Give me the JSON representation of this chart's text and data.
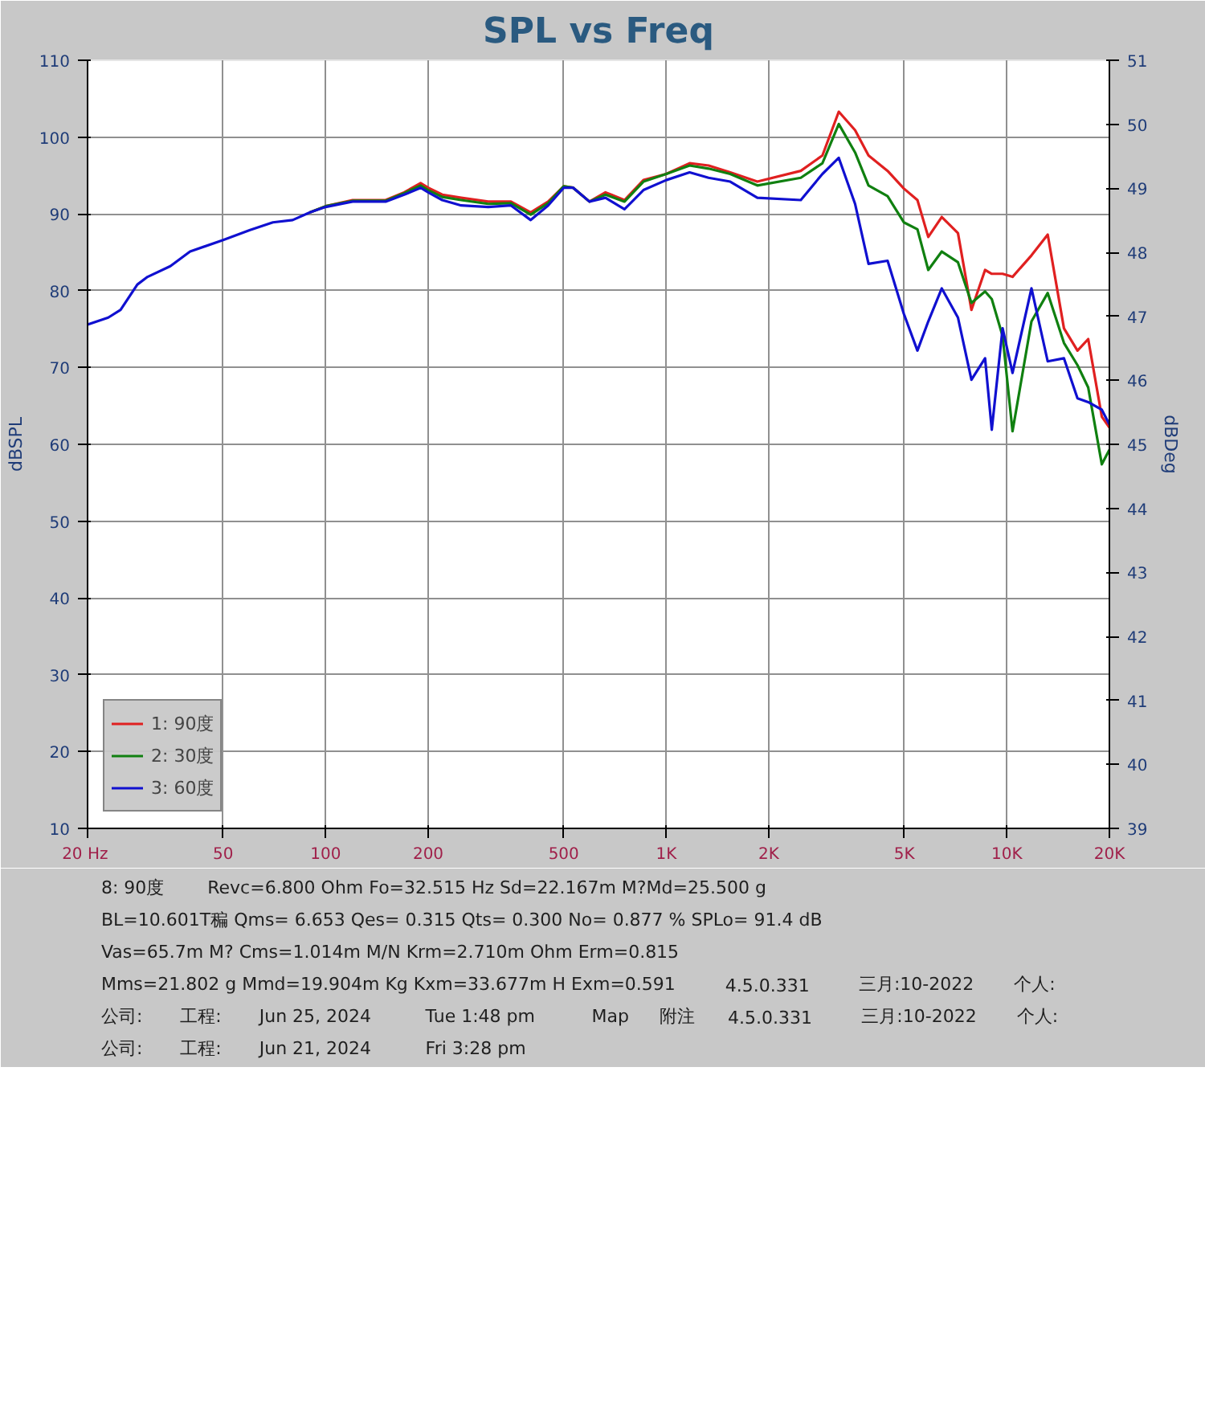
{
  "chart_data": {
    "type": "line",
    "title": "SPL vs Freq",
    "ylabel": "dBSPL",
    "y2label": "dBDeg",
    "log": "x",
    "grid": true,
    "legend": "bottom left",
    "line_style": "solid",
    "xlim": [
      20,
      20000
    ],
    "xticks": [
      {
        "value": 20,
        "label": "20  Hz"
      },
      50,
      100,
      200,
      500,
      {
        "value": 1000,
        "label": "1K"
      },
      {
        "value": 2000,
        "label": "2K"
      },
      {
        "value": 5000,
        "label": "5K"
      },
      {
        "value": 10000,
        "label": "10K"
      },
      {
        "value": 20000,
        "label": "20K"
      }
    ],
    "ylim": [
      10,
      110
    ],
    "yticks": [
      10,
      20,
      30,
      40,
      50,
      60,
      70,
      80,
      90,
      100,
      110
    ],
    "y2lim": [
      39,
      51
    ],
    "y2ticks": [
      39,
      40,
      41,
      42,
      43,
      44,
      45,
      46,
      47,
      48,
      49,
      50,
      51
    ],
    "x": [
      20,
      23,
      25,
      28,
      30,
      35,
      40,
      50,
      60,
      70,
      80,
      90,
      100,
      120,
      150,
      170,
      190,
      200,
      220,
      250,
      300,
      350,
      400,
      450,
      500,
      533,
      595,
      663,
      754,
      857,
      1000,
      1171,
      1331,
      1541,
      1851,
      2483,
      2874,
      3210,
      3584,
      3925,
      4465,
      4983,
      5463,
      5878,
      6440,
      7185,
      7870,
      8630,
      9030,
      9716,
      10390,
      11810,
      13180,
      14710,
      16120,
      17330,
      19000,
      20000
    ],
    "series": [
      {
        "name": "1: 90度",
        "color": "#e02020",
        "values": [
          null,
          null,
          null,
          null,
          null,
          null,
          null,
          null,
          null,
          null,
          null,
          90.2,
          91.0,
          91.8,
          91.8,
          92.8,
          94.0,
          93.4,
          92.5,
          92.1,
          91.6,
          91.6,
          90.2,
          91.6,
          93.6,
          93.4,
          91.6,
          92.8,
          91.8,
          94.4,
          95.2,
          96.6,
          96.3,
          95.4,
          94.2,
          95.6,
          97.6,
          103.3,
          100.9,
          97.6,
          95.6,
          93.3,
          91.8,
          87.0,
          89.6,
          87.5,
          77.5,
          82.7,
          82.2,
          82.2,
          81.8,
          84.6,
          87.3,
          75.1,
          72.2,
          73.7,
          63.6,
          62.2
        ]
      },
      {
        "name": "2: 30度",
        "color": "#108010",
        "values": [
          null,
          null,
          null,
          null,
          null,
          null,
          null,
          null,
          null,
          null,
          null,
          90.2,
          91.0,
          91.7,
          91.7,
          92.7,
          93.7,
          93.1,
          92.2,
          91.8,
          91.3,
          91.4,
          89.9,
          91.4,
          93.6,
          93.4,
          91.6,
          92.5,
          91.6,
          94.2,
          95.2,
          96.3,
          95.9,
          95.2,
          93.7,
          94.7,
          96.6,
          101.7,
          98.0,
          93.7,
          92.3,
          88.9,
          88.0,
          82.7,
          85.1,
          83.7,
          78.4,
          79.9,
          78.9,
          74.1,
          61.7,
          76.0,
          79.7,
          73.2,
          70.3,
          67.4,
          57.4,
          59.3
        ]
      },
      {
        "name": "3: 60度",
        "color": "#1010d0",
        "values": [
          75.6,
          76.5,
          77.5,
          80.8,
          81.8,
          83.2,
          85.1,
          86.6,
          87.9,
          88.9,
          89.2,
          90.2,
          90.9,
          91.6,
          91.6,
          92.5,
          93.4,
          92.8,
          91.8,
          91.1,
          90.9,
          91.1,
          89.2,
          91.1,
          93.4,
          93.4,
          91.6,
          92.1,
          90.6,
          93.1,
          94.4,
          95.4,
          94.7,
          94.2,
          92.1,
          91.8,
          95.2,
          97.3,
          91.3,
          83.5,
          83.9,
          77.0,
          72.2,
          76.0,
          80.3,
          76.5,
          68.4,
          71.2,
          61.9,
          75.1,
          69.3,
          80.3,
          70.8,
          71.2,
          66.0,
          65.5,
          64.5,
          62.6
        ]
      }
    ],
    "annotations": [
      "8: 90度",
      "Revc=6.800 Ohm  Fo=32.515 Hz  Sd=22.167m M?Md=25.500 g",
      "BL=10.601T稨  Qms= 6.653 Qes= 0.315  Qts= 0.300 No= 0.877 %  SPLo= 91.4 dB",
      "Vas=65.7m M? Cms=1.014m M/N  Krm=2.710m Ohm  Erm=0.815",
      "Mms=21.802 g  Mmd=19.904m Kg  Kxm=33.677m H  Exm=0.591",
      "4.5.0.331",
      "三月:10-2022",
      "个人:",
      "公司:",
      "工程:",
      "Jun 25, 2024",
      "Tue  1:48 pm",
      "Map",
      "附注",
      "4.5.0.331",
      "三月:10-2022",
      "个人:",
      "公司:",
      "工程:",
      "Jun 21, 2024",
      "Fri  3:28 pm"
    ]
  }
}
